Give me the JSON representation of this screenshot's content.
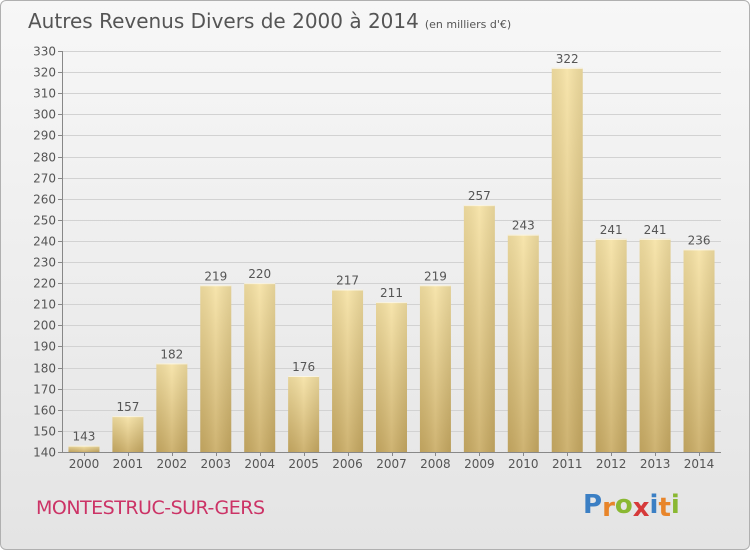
{
  "title": "Autres Revenus Divers de 2000 à 2014",
  "subtitle": "(en milliers d'€)",
  "location": "MONTESTRUC-SUR-GERS",
  "brand": {
    "letters": [
      "P",
      "r",
      "o",
      "x",
      "i",
      "t",
      "i"
    ],
    "colors": [
      "#3b7fc4",
      "#e8852a",
      "#8ab832",
      "#d63a3a",
      "#3b7fc4",
      "#e8852a",
      "#8ab832"
    ]
  },
  "colors": {
    "bar_top": "#f6e2a4",
    "bar_bottom": "#c9ab63",
    "text": "#555555",
    "town": "#cc3366"
  },
  "chart_data": {
    "type": "bar",
    "categories": [
      "2000",
      "2001",
      "2002",
      "2003",
      "2004",
      "2005",
      "2006",
      "2007",
      "2008",
      "2009",
      "2010",
      "2011",
      "2012",
      "2013",
      "2014"
    ],
    "values": [
      143,
      157,
      182,
      219,
      220,
      176,
      217,
      211,
      219,
      257,
      243,
      322,
      241,
      241,
      236
    ],
    "ylim": [
      140,
      330
    ],
    "yticks": [
      140,
      150,
      160,
      170,
      180,
      190,
      200,
      210,
      220,
      230,
      240,
      250,
      260,
      270,
      280,
      290,
      300,
      310,
      320,
      330
    ],
    "grid": true,
    "data_labels": true
  }
}
